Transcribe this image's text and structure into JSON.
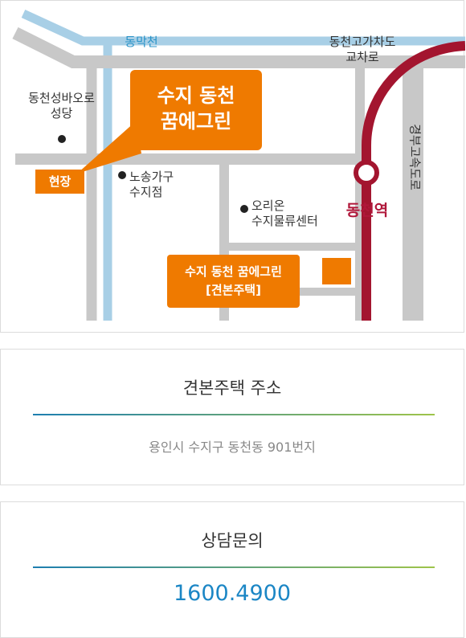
{
  "map": {
    "labels": {
      "dongmakcheon": "동막천",
      "dongcheon_interchange": "동천고가차도\n교차로",
      "gyeongbu_expressway": "경부고속도로",
      "cathedral": "동천성바오로\n성당",
      "nosong": "노송가구\n수지점",
      "orion": "오리온\n수지물류센터",
      "dongcheon_station": "동천역"
    },
    "callouts": {
      "site_tag": "현장",
      "complex_name": "수지 동천\n꿈에그린",
      "model_house": "수지 동천 꿈에그린\n[견본주택]"
    },
    "colors": {
      "road": "#c8c8c8",
      "stream": "#a8cfe6",
      "subway": "#a3152f",
      "callout": "#ef7a00"
    }
  },
  "address": {
    "title": "견본주택 주소",
    "value": "용인시 수지구 동천동 901번지"
  },
  "contact": {
    "title": "상담문의",
    "phone": "1600.4900"
  }
}
